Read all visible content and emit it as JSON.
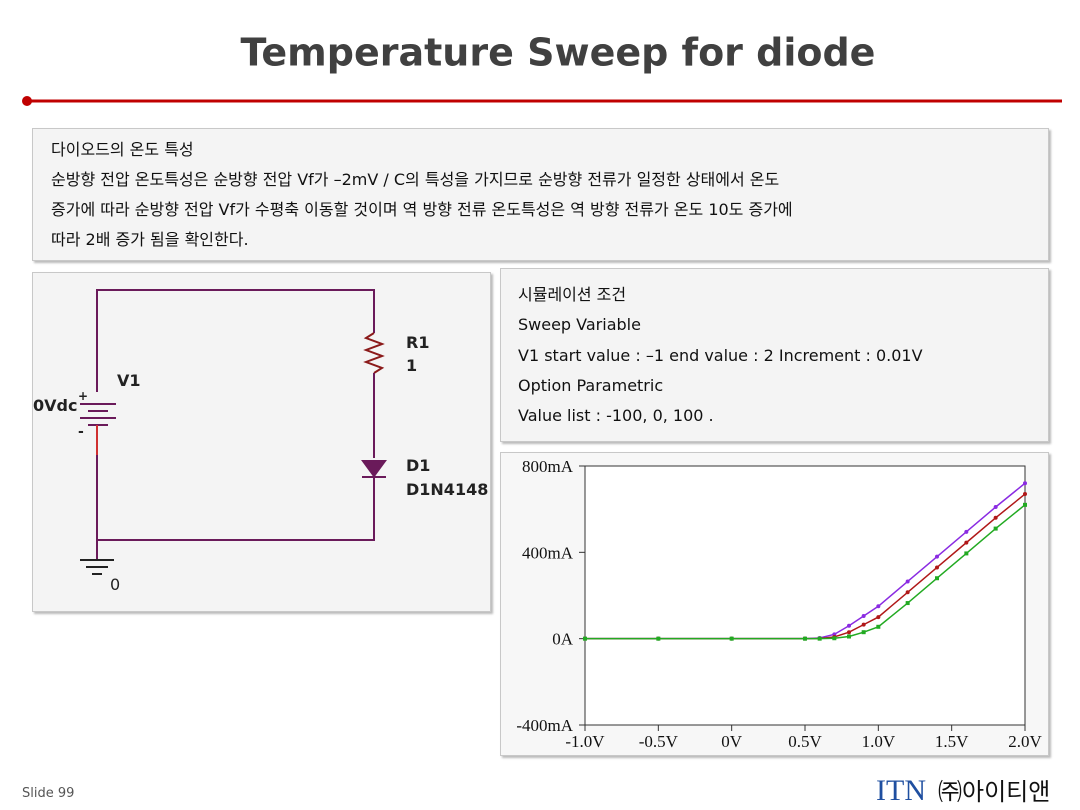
{
  "header": {
    "title": "Temperature Sweep for diode"
  },
  "description": {
    "heading": "다이오드의 온도 특성",
    "lines": [
      "순방향 전압 온도특성은 순방향 전압 Vf가 –2mV / C의 특성을 가지므로 순방향 전류가 일정한 상태에서 온도",
      "증가에 따라 순방향 전압 Vf가 수평축 이동할 것이며 역 방향 전류 온도특성은 역 방향 전류가 온도 10도 증가에",
      "따라 2배 증가 됨을 확인한다."
    ]
  },
  "circuit": {
    "r_name": "R1",
    "r_value": "1",
    "v_name": "V1",
    "v_value": "0Vdc",
    "plus": "+",
    "minus": "-",
    "d_name": "D1",
    "d_model": "D1N4148",
    "ground": "0"
  },
  "conditions": {
    "heading": "시뮬레이션 조건",
    "lines": [
      "Sweep Variable",
      "V1  start value : –1   end value : 2   Increment : 0.01V",
      "Option Parametric",
      "Value list : -100, 0, 100 ."
    ]
  },
  "chart_data": {
    "type": "line",
    "x": [
      -1,
      -0.5,
      0,
      0.5,
      0.6,
      0.7,
      0.8,
      0.9,
      1.0,
      1.2,
      1.4,
      1.6,
      1.8,
      2.0
    ],
    "series": [
      {
        "color": "#8a2be2",
        "marker": "circle",
        "values": [
          0,
          0,
          0,
          0,
          3,
          20,
          60,
          105,
          150,
          265,
          380,
          495,
          610,
          720
        ]
      },
      {
        "color": "#b01818",
        "marker": "circle",
        "values": [
          0,
          0,
          0,
          0,
          1,
          8,
          30,
          65,
          100,
          215,
          330,
          445,
          560,
          670
        ]
      },
      {
        "color": "#22aa22",
        "marker": "square",
        "values": [
          0,
          0,
          0,
          0,
          0,
          2,
          10,
          30,
          55,
          165,
          280,
          395,
          510,
          620
        ]
      }
    ],
    "xlim": [
      -1,
      2
    ],
    "ylim": [
      -400,
      800
    ],
    "xticks": [
      {
        "value": -1,
        "label": "-1.0V"
      },
      {
        "value": -0.5,
        "label": "-0.5V"
      },
      {
        "value": 0,
        "label": "0V"
      },
      {
        "value": 0.5,
        "label": "0.5V"
      },
      {
        "value": 1,
        "label": "1.0V"
      },
      {
        "value": 1.5,
        "label": "1.5V"
      },
      {
        "value": 2,
        "label": "2.0V"
      }
    ],
    "yticks": [
      {
        "value": 800,
        "label": "800mA"
      },
      {
        "value": 400,
        "label": "400mA"
      },
      {
        "value": 0,
        "label": "0A"
      },
      {
        "value": -400,
        "label": "-400mA"
      }
    ],
    "grid": false
  },
  "footer": {
    "slide": "Slide 99",
    "logo": "ITN",
    "company": "㈜아이티앤"
  }
}
